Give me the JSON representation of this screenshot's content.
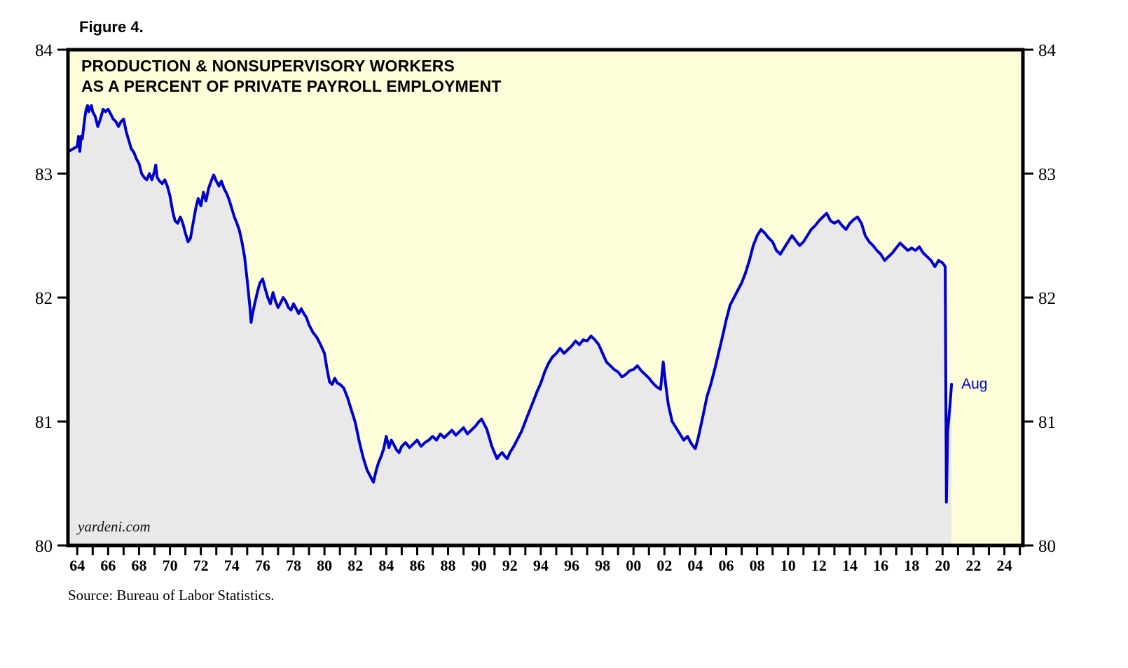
{
  "figure": {
    "label": "Figure 4."
  },
  "source": "Source: Bureau of Labor Statistics.",
  "watermark": "yardeni.com",
  "annotation": {
    "label": "Aug"
  },
  "chart_data": {
    "type": "line",
    "title": "PRODUCTION & NONSUPERVISORY WORKERS AS A PERCENT OF PRIVATE PAYROLL EMPLOYMENT",
    "title_lines": [
      "PRODUCTION & NONSUPERVISORY WORKERS",
      "AS A PERCENT OF PRIVATE PAYROLL EMPLOYMENT"
    ],
    "xlabel": "",
    "ylabel": "",
    "xlim": [
      1963.4,
      2025.2
    ],
    "ylim": [
      80,
      84
    ],
    "grid": false,
    "legend": "none",
    "y_ticks": [
      80,
      81,
      82,
      83,
      84
    ],
    "x_tick_years": [
      1964,
      1966,
      1968,
      1970,
      1972,
      1974,
      1976,
      1978,
      1980,
      1982,
      1984,
      1986,
      1988,
      1990,
      1992,
      1994,
      1996,
      1998,
      2000,
      2002,
      2004,
      2006,
      2008,
      2010,
      2012,
      2014,
      2016,
      2018,
      2020,
      2022,
      2024
    ],
    "x_tick_labels": [
      "64",
      "66",
      "68",
      "70",
      "72",
      "74",
      "76",
      "78",
      "80",
      "82",
      "84",
      "86",
      "88",
      "90",
      "92",
      "94",
      "96",
      "98",
      "00",
      "02",
      "04",
      "06",
      "08",
      "10",
      "12",
      "14",
      "16",
      "18",
      "20",
      "22",
      "24"
    ],
    "colors": {
      "line": "#0000CC",
      "area": "#E9E9E9",
      "plot_bg": "#FDFDD9",
      "border": "#000000",
      "annotation": "#0000CC"
    },
    "series": [
      {
        "name": "Production & nonsupervisory workers as a percent of private payroll employment",
        "points": [
          [
            1963.45,
            83.18
          ],
          [
            1964.0,
            83.22
          ],
          [
            1964.08,
            83.3
          ],
          [
            1964.17,
            83.18
          ],
          [
            1964.25,
            83.3
          ],
          [
            1964.33,
            83.28
          ],
          [
            1964.42,
            83.38
          ],
          [
            1964.5,
            83.46
          ],
          [
            1964.58,
            83.52
          ],
          [
            1964.67,
            83.55
          ],
          [
            1964.75,
            83.5
          ],
          [
            1964.83,
            83.53
          ],
          [
            1964.92,
            83.55
          ],
          [
            1965.0,
            83.5
          ],
          [
            1965.17,
            83.46
          ],
          [
            1965.33,
            83.38
          ],
          [
            1965.5,
            83.44
          ],
          [
            1965.67,
            83.52
          ],
          [
            1965.83,
            83.5
          ],
          [
            1966.0,
            83.52
          ],
          [
            1966.17,
            83.48
          ],
          [
            1966.33,
            83.44
          ],
          [
            1966.5,
            83.42
          ],
          [
            1966.67,
            83.38
          ],
          [
            1966.83,
            83.42
          ],
          [
            1967.0,
            83.44
          ],
          [
            1967.17,
            83.34
          ],
          [
            1967.33,
            83.27
          ],
          [
            1967.5,
            83.2
          ],
          [
            1967.67,
            83.17
          ],
          [
            1967.83,
            83.12
          ],
          [
            1968.0,
            83.08
          ],
          [
            1968.17,
            83.0
          ],
          [
            1968.33,
            82.97
          ],
          [
            1968.5,
            82.95
          ],
          [
            1968.67,
            83.0
          ],
          [
            1968.83,
            82.95
          ],
          [
            1969.0,
            83.02
          ],
          [
            1969.08,
            83.07
          ],
          [
            1969.17,
            82.97
          ],
          [
            1969.33,
            82.94
          ],
          [
            1969.5,
            82.92
          ],
          [
            1969.67,
            82.95
          ],
          [
            1969.83,
            82.9
          ],
          [
            1970.0,
            82.82
          ],
          [
            1970.17,
            82.7
          ],
          [
            1970.33,
            82.62
          ],
          [
            1970.5,
            82.6
          ],
          [
            1970.67,
            82.65
          ],
          [
            1970.83,
            82.6
          ],
          [
            1971.0,
            82.52
          ],
          [
            1971.17,
            82.45
          ],
          [
            1971.33,
            82.48
          ],
          [
            1971.5,
            82.6
          ],
          [
            1971.67,
            82.72
          ],
          [
            1971.83,
            82.8
          ],
          [
            1972.0,
            82.74
          ],
          [
            1972.17,
            82.85
          ],
          [
            1972.33,
            82.78
          ],
          [
            1972.5,
            82.88
          ],
          [
            1972.67,
            82.94
          ],
          [
            1972.83,
            82.99
          ],
          [
            1973.0,
            82.94
          ],
          [
            1973.17,
            82.9
          ],
          [
            1973.33,
            82.94
          ],
          [
            1973.5,
            82.88
          ],
          [
            1973.67,
            82.84
          ],
          [
            1973.83,
            82.79
          ],
          [
            1974.0,
            82.72
          ],
          [
            1974.17,
            82.65
          ],
          [
            1974.33,
            82.6
          ],
          [
            1974.5,
            82.54
          ],
          [
            1974.67,
            82.44
          ],
          [
            1974.83,
            82.33
          ],
          [
            1975.0,
            82.14
          ],
          [
            1975.17,
            81.93
          ],
          [
            1975.25,
            81.8
          ],
          [
            1975.33,
            81.86
          ],
          [
            1975.5,
            81.96
          ],
          [
            1975.67,
            82.05
          ],
          [
            1975.83,
            82.12
          ],
          [
            1976.0,
            82.15
          ],
          [
            1976.17,
            82.07
          ],
          [
            1976.33,
            82.0
          ],
          [
            1976.5,
            81.95
          ],
          [
            1976.67,
            82.04
          ],
          [
            1976.83,
            81.97
          ],
          [
            1977.0,
            81.92
          ],
          [
            1977.17,
            81.96
          ],
          [
            1977.33,
            82.0
          ],
          [
            1977.5,
            81.97
          ],
          [
            1977.67,
            81.92
          ],
          [
            1977.83,
            81.9
          ],
          [
            1978.0,
            81.95
          ],
          [
            1978.17,
            81.91
          ],
          [
            1978.33,
            81.87
          ],
          [
            1978.5,
            81.91
          ],
          [
            1978.67,
            81.87
          ],
          [
            1978.83,
            81.84
          ],
          [
            1979.0,
            81.78
          ],
          [
            1979.25,
            81.72
          ],
          [
            1979.5,
            81.68
          ],
          [
            1979.75,
            81.62
          ],
          [
            1980.0,
            81.55
          ],
          [
            1980.17,
            81.42
          ],
          [
            1980.33,
            81.32
          ],
          [
            1980.5,
            81.3
          ],
          [
            1980.67,
            81.35
          ],
          [
            1980.83,
            81.31
          ],
          [
            1981.0,
            81.3
          ],
          [
            1981.25,
            81.27
          ],
          [
            1981.5,
            81.19
          ],
          [
            1981.75,
            81.09
          ],
          [
            1982.0,
            80.99
          ],
          [
            1982.25,
            80.84
          ],
          [
            1982.5,
            80.71
          ],
          [
            1982.75,
            80.61
          ],
          [
            1983.0,
            80.55
          ],
          [
            1983.17,
            80.51
          ],
          [
            1983.33,
            80.6
          ],
          [
            1983.5,
            80.67
          ],
          [
            1983.67,
            80.72
          ],
          [
            1983.83,
            80.78
          ],
          [
            1984.0,
            80.88
          ],
          [
            1984.17,
            80.79
          ],
          [
            1984.33,
            80.85
          ],
          [
            1984.5,
            80.81
          ],
          [
            1984.67,
            80.77
          ],
          [
            1984.83,
            80.75
          ],
          [
            1985.0,
            80.8
          ],
          [
            1985.25,
            80.83
          ],
          [
            1985.5,
            80.79
          ],
          [
            1985.75,
            80.82
          ],
          [
            1986.0,
            80.85
          ],
          [
            1986.25,
            80.8
          ],
          [
            1986.5,
            80.83
          ],
          [
            1986.75,
            80.85
          ],
          [
            1987.0,
            80.88
          ],
          [
            1987.25,
            80.85
          ],
          [
            1987.5,
            80.9
          ],
          [
            1987.75,
            80.87
          ],
          [
            1988.0,
            80.9
          ],
          [
            1988.25,
            80.93
          ],
          [
            1988.5,
            80.89
          ],
          [
            1988.75,
            80.92
          ],
          [
            1989.0,
            80.95
          ],
          [
            1989.25,
            80.9
          ],
          [
            1989.5,
            80.93
          ],
          [
            1989.75,
            80.96
          ],
          [
            1990.0,
            81.0
          ],
          [
            1990.17,
            81.02
          ],
          [
            1990.33,
            80.98
          ],
          [
            1990.5,
            80.94
          ],
          [
            1990.67,
            80.87
          ],
          [
            1990.83,
            80.8
          ],
          [
            1991.0,
            80.75
          ],
          [
            1991.17,
            80.7
          ],
          [
            1991.33,
            80.73
          ],
          [
            1991.5,
            80.75
          ],
          [
            1991.67,
            80.72
          ],
          [
            1991.83,
            80.7
          ],
          [
            1992.0,
            80.75
          ],
          [
            1992.25,
            80.8
          ],
          [
            1992.5,
            80.86
          ],
          [
            1992.75,
            80.92
          ],
          [
            1993.0,
            81.0
          ],
          [
            1993.25,
            81.08
          ],
          [
            1993.5,
            81.16
          ],
          [
            1993.75,
            81.24
          ],
          [
            1994.0,
            81.31
          ],
          [
            1994.25,
            81.4
          ],
          [
            1994.5,
            81.47
          ],
          [
            1994.75,
            81.52
          ],
          [
            1995.0,
            81.55
          ],
          [
            1995.25,
            81.59
          ],
          [
            1995.5,
            81.55
          ],
          [
            1995.75,
            81.58
          ],
          [
            1996.0,
            81.61
          ],
          [
            1996.25,
            81.65
          ],
          [
            1996.5,
            81.62
          ],
          [
            1996.75,
            81.66
          ],
          [
            1997.0,
            81.65
          ],
          [
            1997.25,
            81.69
          ],
          [
            1997.5,
            81.66
          ],
          [
            1997.75,
            81.62
          ],
          [
            1998.0,
            81.55
          ],
          [
            1998.25,
            81.48
          ],
          [
            1998.5,
            81.45
          ],
          [
            1998.75,
            81.42
          ],
          [
            1999.0,
            81.4
          ],
          [
            1999.25,
            81.36
          ],
          [
            1999.5,
            81.38
          ],
          [
            1999.75,
            81.41
          ],
          [
            2000.0,
            81.42
          ],
          [
            2000.25,
            81.45
          ],
          [
            2000.5,
            81.41
          ],
          [
            2000.75,
            81.38
          ],
          [
            2001.0,
            81.35
          ],
          [
            2001.25,
            81.31
          ],
          [
            2001.5,
            81.28
          ],
          [
            2001.75,
            81.26
          ],
          [
            2001.92,
            81.48
          ],
          [
            2002.08,
            81.3
          ],
          [
            2002.25,
            81.14
          ],
          [
            2002.5,
            81.0
          ],
          [
            2002.75,
            80.95
          ],
          [
            2003.0,
            80.9
          ],
          [
            2003.25,
            80.85
          ],
          [
            2003.5,
            80.88
          ],
          [
            2003.75,
            80.82
          ],
          [
            2004.0,
            80.78
          ],
          [
            2004.17,
            80.86
          ],
          [
            2004.33,
            80.95
          ],
          [
            2004.5,
            81.05
          ],
          [
            2004.75,
            81.2
          ],
          [
            2005.0,
            81.3
          ],
          [
            2005.25,
            81.42
          ],
          [
            2005.5,
            81.55
          ],
          [
            2005.75,
            81.68
          ],
          [
            2006.0,
            81.82
          ],
          [
            2006.25,
            81.94
          ],
          [
            2006.5,
            82.0
          ],
          [
            2006.75,
            82.06
          ],
          [
            2007.0,
            82.12
          ],
          [
            2007.25,
            82.2
          ],
          [
            2007.5,
            82.3
          ],
          [
            2007.75,
            82.42
          ],
          [
            2008.0,
            82.5
          ],
          [
            2008.25,
            82.55
          ],
          [
            2008.5,
            82.52
          ],
          [
            2008.75,
            82.48
          ],
          [
            2009.0,
            82.45
          ],
          [
            2009.25,
            82.38
          ],
          [
            2009.5,
            82.35
          ],
          [
            2009.75,
            82.4
          ],
          [
            2010.0,
            82.45
          ],
          [
            2010.25,
            82.5
          ],
          [
            2010.5,
            82.46
          ],
          [
            2010.75,
            82.42
          ],
          [
            2011.0,
            82.45
          ],
          [
            2011.25,
            82.5
          ],
          [
            2011.5,
            82.55
          ],
          [
            2011.75,
            82.58
          ],
          [
            2012.0,
            82.62
          ],
          [
            2012.25,
            82.65
          ],
          [
            2012.5,
            82.68
          ],
          [
            2012.75,
            82.62
          ],
          [
            2013.0,
            82.6
          ],
          [
            2013.25,
            82.62
          ],
          [
            2013.5,
            82.58
          ],
          [
            2013.75,
            82.55
          ],
          [
            2014.0,
            82.6
          ],
          [
            2014.25,
            82.63
          ],
          [
            2014.5,
            82.65
          ],
          [
            2014.75,
            82.6
          ],
          [
            2015.0,
            82.5
          ],
          [
            2015.25,
            82.45
          ],
          [
            2015.5,
            82.42
          ],
          [
            2015.75,
            82.38
          ],
          [
            2016.0,
            82.35
          ],
          [
            2016.25,
            82.3
          ],
          [
            2016.5,
            82.33
          ],
          [
            2016.75,
            82.36
          ],
          [
            2017.0,
            82.4
          ],
          [
            2017.25,
            82.44
          ],
          [
            2017.5,
            82.41
          ],
          [
            2017.75,
            82.38
          ],
          [
            2018.0,
            82.4
          ],
          [
            2018.25,
            82.38
          ],
          [
            2018.5,
            82.41
          ],
          [
            2018.75,
            82.36
          ],
          [
            2019.0,
            82.33
          ],
          [
            2019.25,
            82.3
          ],
          [
            2019.5,
            82.25
          ],
          [
            2019.75,
            82.3
          ],
          [
            2020.0,
            82.28
          ],
          [
            2020.17,
            82.25
          ],
          [
            2020.25,
            80.35
          ],
          [
            2020.33,
            80.92
          ],
          [
            2020.42,
            81.05
          ],
          [
            2020.5,
            81.16
          ],
          [
            2020.58,
            81.3
          ]
        ]
      }
    ]
  }
}
